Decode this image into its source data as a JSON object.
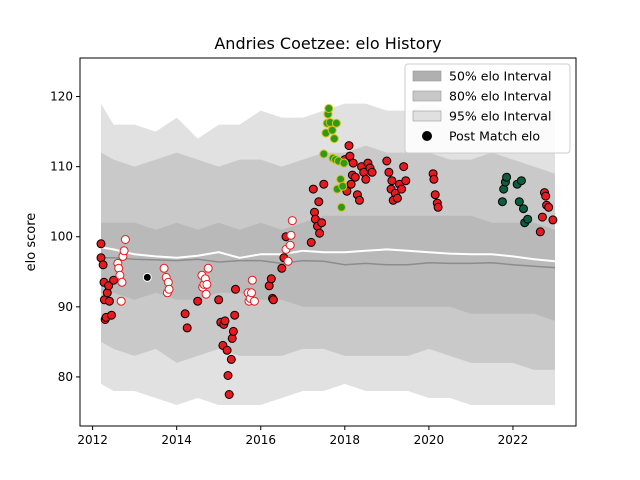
{
  "chart_data": {
    "type": "scatter",
    "title": "Andries Coetzee: elo History",
    "xlabel": "",
    "ylabel": "elo score",
    "xlim": [
      2011.7,
      2023.5
    ],
    "ylim": [
      73,
      125.5
    ],
    "x_ticks": [
      2012,
      2014,
      2016,
      2018,
      2020,
      2022
    ],
    "y_ticks": [
      80,
      90,
      100,
      110,
      120
    ],
    "grid": false,
    "legend_position": "top-right",
    "legend": [
      {
        "label": "50% elo Interval",
        "kind": "patch",
        "color": "#b0b0b0"
      },
      {
        "label": "80% elo Interval",
        "kind": "patch",
        "color": "#c8c8c8"
      },
      {
        "label": "95% elo Interval",
        "kind": "patch",
        "color": "#e0e0e0"
      },
      {
        "label": "Post Match elo",
        "kind": "marker",
        "color": "#000000"
      }
    ],
    "colors": {
      "band95": "#e1e1e1",
      "band80": "#c9c9c9",
      "band50": "#b9b9b9",
      "median": "#8c8c8c",
      "mean": "#ffffff"
    },
    "bands": {
      "x": [
        2012.2,
        2012.5,
        2013.0,
        2013.5,
        2014.0,
        2014.5,
        2015.0,
        2015.5,
        2016.0,
        2016.5,
        2017.0,
        2017.5,
        2018.0,
        2018.5,
        2019.0,
        2019.5,
        2020.0,
        2020.5,
        2021.0,
        2021.5,
        2022.0,
        2022.5,
        2023.0
      ],
      "p95_upper": [
        119,
        116,
        116,
        115,
        117,
        114,
        116,
        116,
        118,
        117,
        117,
        118,
        119,
        119,
        118,
        118,
        119,
        118,
        118,
        118,
        117,
        118,
        118
      ],
      "p80_upper": [
        112,
        111,
        110,
        111,
        112,
        111,
        110,
        111,
        111,
        110,
        111,
        112,
        112,
        113,
        112,
        112,
        112,
        111,
        111,
        112,
        111,
        110,
        109
      ],
      "p50_upper": [
        102,
        102,
        102,
        101,
        102,
        101,
        102,
        101,
        102,
        101,
        102,
        103,
        103,
        103,
        103,
        103,
        103,
        103,
        103,
        102,
        102,
        102,
        101
      ],
      "median": [
        97.0,
        97.0,
        96.8,
        96.7,
        96.6,
        96.8,
        96.4,
        96.6,
        96.6,
        96.2,
        96.6,
        96.5,
        96.0,
        96.2,
        96.0,
        96.0,
        96.3,
        96.2,
        96.2,
        96.3,
        96.0,
        95.8,
        95.6
      ],
      "mean": [
        98.5,
        98.2,
        97.5,
        97.2,
        97.0,
        97.3,
        97.8,
        97.0,
        97.5,
        97.5,
        98.0,
        97.8,
        97.8,
        98.0,
        98.2,
        98.0,
        97.8,
        97.6,
        97.5,
        97.5,
        97.2,
        96.8,
        96.5
      ],
      "p50_lower": [
        92,
        92,
        91,
        92,
        91,
        91,
        92,
        92,
        91,
        91,
        90,
        90,
        90,
        90,
        90,
        90,
        90,
        90,
        89,
        89,
        89,
        89,
        88
      ],
      "p80_lower": [
        85,
        84,
        83,
        84,
        82,
        83,
        84,
        83,
        83,
        83,
        84,
        84,
        83,
        83,
        83,
        83,
        84,
        83,
        82,
        82,
        82,
        81,
        81
      ],
      "p95_lower": [
        79,
        78,
        78,
        77,
        76,
        77,
        76,
        76,
        76,
        77,
        78,
        78,
        79,
        78,
        78,
        78,
        77,
        77,
        76,
        76,
        76,
        76,
        76
      ]
    },
    "series": [
      {
        "marker": {
          "fill": "#e8191f",
          "edge": "#000000"
        },
        "points": [
          [
            2012.2,
            99
          ],
          [
            2012.2,
            97
          ],
          [
            2012.25,
            96
          ],
          [
            2012.27,
            93.5
          ],
          [
            2012.28,
            91
          ],
          [
            2012.3,
            88.2
          ],
          [
            2012.32,
            88.5
          ],
          [
            2012.35,
            92
          ],
          [
            2012.38,
            93
          ],
          [
            2012.4,
            90.8
          ],
          [
            2012.45,
            88.8
          ],
          [
            2012.5,
            93.8
          ],
          [
            2014.2,
            89
          ],
          [
            2014.25,
            87
          ],
          [
            2014.5,
            90.8
          ],
          [
            2015.0,
            91
          ],
          [
            2015.05,
            87.8
          ],
          [
            2015.1,
            84.5
          ],
          [
            2015.12,
            87.5
          ],
          [
            2015.15,
            88
          ],
          [
            2015.2,
            83.8
          ],
          [
            2015.22,
            80.2
          ],
          [
            2015.25,
            77.5
          ],
          [
            2015.3,
            82.5
          ],
          [
            2015.32,
            85.5
          ],
          [
            2015.35,
            86.5
          ],
          [
            2015.38,
            88.8
          ],
          [
            2015.4,
            92.5
          ],
          [
            2016.2,
            93
          ],
          [
            2016.25,
            94
          ],
          [
            2016.28,
            91.2
          ],
          [
            2016.3,
            91
          ],
          [
            2016.5,
            95.5
          ],
          [
            2016.55,
            97
          ],
          [
            2016.6,
            100
          ],
          [
            2017.2,
            99.2
          ],
          [
            2017.25,
            106.8
          ],
          [
            2017.28,
            103.5
          ],
          [
            2017.3,
            102.5
          ],
          [
            2017.35,
            101.5
          ],
          [
            2017.38,
            105
          ],
          [
            2017.4,
            100.5
          ],
          [
            2017.45,
            102
          ],
          [
            2017.5,
            107.5
          ],
          [
            2018.0,
            111
          ],
          [
            2018.05,
            106.5
          ],
          [
            2018.1,
            113
          ],
          [
            2018.12,
            111.5
          ],
          [
            2018.15,
            107.5
          ],
          [
            2018.18,
            108.8
          ],
          [
            2018.2,
            110.5
          ],
          [
            2018.25,
            108.5
          ],
          [
            2018.3,
            106
          ],
          [
            2018.35,
            105.2
          ],
          [
            2018.4,
            110
          ],
          [
            2018.45,
            109.2
          ],
          [
            2018.5,
            108.2
          ],
          [
            2018.55,
            110.5
          ],
          [
            2018.6,
            109.8
          ],
          [
            2018.65,
            109.2
          ],
          [
            2019.0,
            110.8
          ],
          [
            2019.05,
            109.2
          ],
          [
            2019.1,
            106.8
          ],
          [
            2019.12,
            108
          ],
          [
            2019.15,
            105.2
          ],
          [
            2019.2,
            106.2
          ],
          [
            2019.25,
            105.5
          ],
          [
            2019.3,
            107.5
          ],
          [
            2019.35,
            106.8
          ],
          [
            2019.4,
            110
          ],
          [
            2019.45,
            108
          ],
          [
            2020.1,
            109
          ],
          [
            2020.12,
            108.2
          ],
          [
            2020.15,
            106
          ],
          [
            2020.2,
            104.8
          ],
          [
            2020.22,
            104.2
          ],
          [
            2022.65,
            100.7
          ],
          [
            2022.7,
            102.8
          ],
          [
            2022.75,
            106.3
          ],
          [
            2022.78,
            105.8
          ],
          [
            2022.8,
            104.5
          ],
          [
            2022.85,
            104.2
          ],
          [
            2022.95,
            102.4
          ]
        ]
      },
      {
        "marker": {
          "fill": "#ffffff",
          "edge": "#e8191f"
        },
        "points": [
          [
            2012.6,
            96.2
          ],
          [
            2012.62,
            95.5
          ],
          [
            2012.65,
            94.5
          ],
          [
            2012.68,
            90.8
          ],
          [
            2012.7,
            93.5
          ],
          [
            2012.72,
            97.2
          ],
          [
            2012.75,
            98
          ],
          [
            2012.78,
            99.6
          ],
          [
            2013.7,
            95.5
          ],
          [
            2013.75,
            94.2
          ],
          [
            2013.78,
            92
          ],
          [
            2013.8,
            93.5
          ],
          [
            2013.82,
            92.5
          ],
          [
            2014.6,
            94.5
          ],
          [
            2014.62,
            92.8
          ],
          [
            2014.65,
            93.2
          ],
          [
            2014.68,
            94
          ],
          [
            2014.7,
            91.8
          ],
          [
            2014.72,
            93.2
          ],
          [
            2014.75,
            95.5
          ],
          [
            2015.7,
            92
          ],
          [
            2015.72,
            90.8
          ],
          [
            2015.75,
            91.2
          ],
          [
            2015.78,
            92
          ],
          [
            2015.8,
            93.8
          ],
          [
            2015.85,
            90.8
          ],
          [
            2016.6,
            98.2
          ],
          [
            2016.65,
            96.5
          ],
          [
            2016.7,
            98.8
          ],
          [
            2016.72,
            100.2
          ],
          [
            2016.75,
            102.3
          ]
        ]
      },
      {
        "marker": {
          "fill": "#000000",
          "edge": "#ffffff"
        },
        "points": [
          [
            2013.3,
            94.2
          ]
        ]
      },
      {
        "marker": {
          "fill": "#2e9a18",
          "edge": "#d6c21a"
        },
        "points": [
          [
            2017.5,
            111.8
          ],
          [
            2017.55,
            114.8
          ],
          [
            2017.58,
            116.2
          ],
          [
            2017.6,
            117.5
          ],
          [
            2017.62,
            118.3
          ],
          [
            2017.65,
            116.3
          ],
          [
            2017.7,
            115.2
          ],
          [
            2017.72,
            111.2
          ],
          [
            2017.75,
            114
          ],
          [
            2017.78,
            111
          ],
          [
            2017.8,
            116.2
          ],
          [
            2017.82,
            106.8
          ],
          [
            2017.85,
            110.8
          ],
          [
            2017.9,
            108.2
          ],
          [
            2017.92,
            104.2
          ],
          [
            2017.95,
            107.2
          ],
          [
            2017.98,
            110.5
          ]
        ]
      },
      {
        "marker": {
          "fill": "#0b5e3f",
          "edge": "#000000"
        },
        "points": [
          [
            2021.75,
            105
          ],
          [
            2021.78,
            106.8
          ],
          [
            2021.82,
            107.8
          ],
          [
            2021.85,
            108.5
          ],
          [
            2022.1,
            107.5
          ],
          [
            2022.15,
            105
          ],
          [
            2022.2,
            108
          ],
          [
            2022.25,
            104
          ],
          [
            2022.28,
            102
          ],
          [
            2022.35,
            102.5
          ]
        ]
      }
    ]
  }
}
